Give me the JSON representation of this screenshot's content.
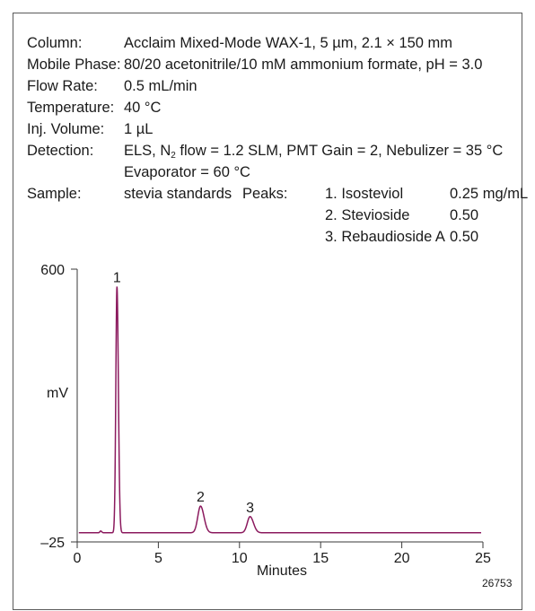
{
  "conditions": {
    "column_label": "Column:",
    "column_value": "Acclaim Mixed-Mode WAX-1, 5 µm, 2.1 × 150 mm",
    "mobile_phase_label": "Mobile Phase:",
    "mobile_phase_value": "80/20 acetonitrile/10 mM ammonium formate, pH = 3.0",
    "flow_rate_label": "Flow Rate:",
    "flow_rate_value": "0.5 mL/min",
    "temperature_label": "Temperature:",
    "temperature_value": "40 °C",
    "inj_volume_label": "Inj. Volume:",
    "inj_volume_value": "1 µL",
    "detection_label": "Detection:",
    "detection_value_pre": "ELS, N",
    "detection_value_sub": "2",
    "detection_value_post": " flow = 1.2 SLM, PMT Gain = 2, Nebulizer = 35 °C",
    "detection_value_line2": "Evaporator = 60 °C",
    "sample_label": "Sample:",
    "sample_value": "stevia standards",
    "peaks_label": "Peaks:",
    "peaks": [
      {
        "name": "1. Isosteviol",
        "amount": "0.25 mg/mL"
      },
      {
        "name": "2. Stevioside",
        "amount": "0.50"
      },
      {
        "name": "3. Rebaudioside A",
        "amount": "0.50"
      }
    ]
  },
  "figure_id": "26753",
  "chart_data": {
    "type": "line",
    "title": "",
    "xlabel": "Minutes",
    "ylabel": "mV",
    "xlim": [
      0,
      25
    ],
    "ylim": [
      -25,
      600
    ],
    "x_ticks": [
      0,
      5,
      10,
      15,
      20,
      25
    ],
    "y_ticks": [
      -25,
      600
    ],
    "line_color": "#8b1a5e",
    "baseline_mv": -4,
    "peaks": [
      {
        "label": "1",
        "x": 2.45,
        "y": 560,
        "width": 0.07
      },
      {
        "label": "2",
        "x": 7.6,
        "y": 57,
        "width": 0.17
      },
      {
        "label": "3",
        "x": 10.65,
        "y": 33,
        "width": 0.17
      }
    ],
    "minor_bumps": [
      {
        "x": 1.45,
        "y": 0,
        "width": 0.05
      }
    ],
    "grid": false
  }
}
